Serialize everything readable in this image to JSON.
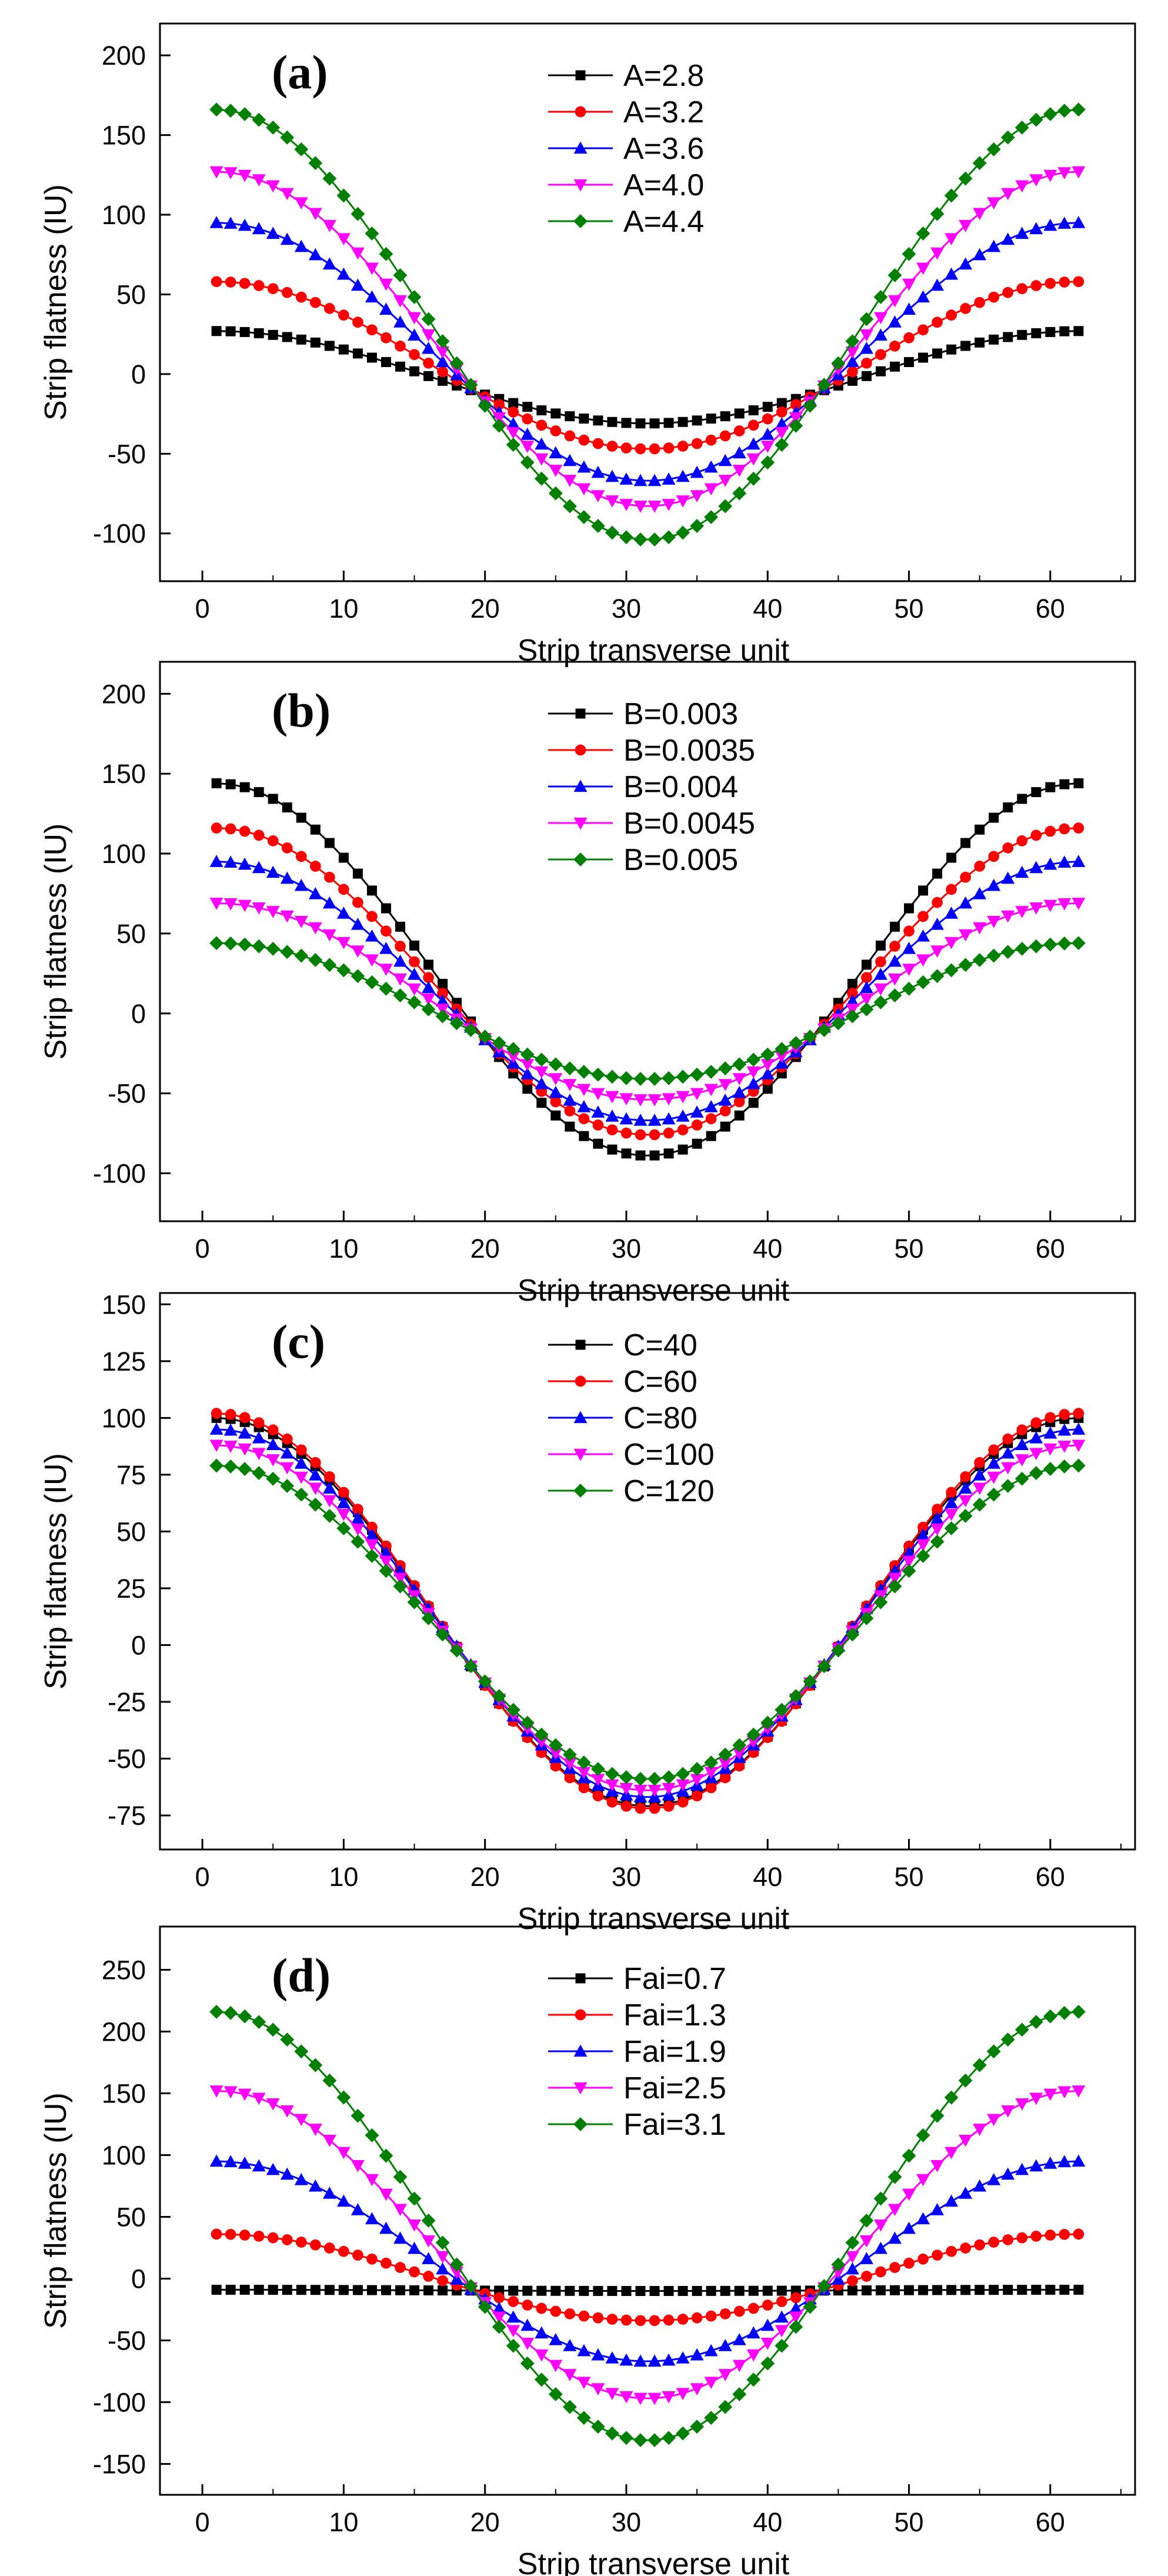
{
  "figure": {
    "colors": {
      "black": "#000000",
      "red": "#ff0000",
      "blue": "#0000ff",
      "magenta": "#ff00ff",
      "green": "#008000"
    }
  },
  "chart_data": [
    {
      "type": "line",
      "panel": "(a)",
      "xlabel": "Strip transverse unit",
      "ylabel": "Strip flatness (IU)",
      "xlim": [
        -3,
        66
      ],
      "ylim": [
        -130,
        220
      ],
      "xticks": [
        0,
        10,
        20,
        30,
        40,
        50,
        60
      ],
      "yticks": [
        -100,
        -50,
        0,
        50,
        100,
        150,
        200
      ],
      "x_range": [
        1,
        62
      ],
      "legend_position": "top-center",
      "series": [
        {
          "name": "A=2.8",
          "color": "#000000",
          "marker": "square",
          "edge": 27,
          "min": -31
        },
        {
          "name": "A=3.2",
          "color": "#ff0000",
          "marker": "circle",
          "edge": 58,
          "min": -47
        },
        {
          "name": "A=3.6",
          "color": "#0000ff",
          "marker": "triangle-up",
          "edge": 95,
          "min": -67
        },
        {
          "name": "A=4.0",
          "color": "#ff00ff",
          "marker": "triangle-down",
          "edge": 127,
          "min": -83
        },
        {
          "name": "A=4.4",
          "color": "#008000",
          "marker": "diamond",
          "edge": 166,
          "min": -104
        }
      ]
    },
    {
      "type": "line",
      "panel": "(b)",
      "xlabel": "Strip transverse unit",
      "ylabel": "Strip flatness (IU)",
      "xlim": [
        -3,
        66
      ],
      "ylim": [
        -130,
        220
      ],
      "xticks": [
        0,
        10,
        20,
        30,
        40,
        50,
        60
      ],
      "yticks": [
        -100,
        -50,
        0,
        50,
        100,
        150,
        200
      ],
      "x_range": [
        1,
        62
      ],
      "legend_position": "top-center",
      "series": [
        {
          "name": "B=0.003",
          "color": "#000000",
          "marker": "square",
          "edge": 144,
          "min": -89
        },
        {
          "name": "B=0.0035",
          "color": "#ff0000",
          "marker": "circle",
          "edge": 116,
          "min": -76
        },
        {
          "name": "B=0.004",
          "color": "#0000ff",
          "marker": "triangle-up",
          "edge": 95,
          "min": -67
        },
        {
          "name": "B=0.0045",
          "color": "#ff00ff",
          "marker": "triangle-down",
          "edge": 69,
          "min": -54
        },
        {
          "name": "B=0.005",
          "color": "#008000",
          "marker": "diamond",
          "edge": 44,
          "min": -41
        }
      ]
    },
    {
      "type": "line",
      "panel": "(c)",
      "xlabel": "Strip transverse unit",
      "ylabel": "Strip flatness (IU)",
      "xlim": [
        -3,
        66
      ],
      "ylim": [
        -90,
        155
      ],
      "xticks": [
        0,
        10,
        20,
        30,
        40,
        50,
        60
      ],
      "yticks": [
        -75,
        -50,
        -25,
        0,
        25,
        50,
        75,
        100,
        125,
        150
      ],
      "x_range": [
        1,
        62
      ],
      "legend_position": "top-center",
      "series": [
        {
          "name": "C=40",
          "color": "#000000",
          "marker": "square",
          "edge": 100,
          "min": -71
        },
        {
          "name": "C=60",
          "color": "#ff0000",
          "marker": "circle",
          "edge": 102,
          "min": -72
        },
        {
          "name": "C=80",
          "color": "#0000ff",
          "marker": "triangle-up",
          "edge": 95,
          "min": -67
        },
        {
          "name": "C=100",
          "color": "#ff00ff",
          "marker": "triangle-down",
          "edge": 88,
          "min": -64
        },
        {
          "name": "C=120",
          "color": "#008000",
          "marker": "diamond",
          "edge": 79,
          "min": -59
        }
      ]
    },
    {
      "type": "line",
      "panel": "(d)",
      "xlabel": "Strip transverse unit",
      "ylabel": "Strip flatness (IU)",
      "xlim": [
        -3,
        66
      ],
      "ylim": [
        -175,
        285
      ],
      "xticks": [
        0,
        10,
        20,
        30,
        40,
        50,
        60
      ],
      "yticks": [
        -150,
        -100,
        -50,
        0,
        50,
        100,
        150,
        200,
        250
      ],
      "x_range": [
        1,
        62
      ],
      "legend_position": "top-center",
      "series": [
        {
          "name": "Fai=0.7",
          "color": "#000000",
          "marker": "square",
          "edge": -9,
          "min": -10
        },
        {
          "name": "Fai=1.3",
          "color": "#ff0000",
          "marker": "circle",
          "edge": 36,
          "min": -34
        },
        {
          "name": "Fai=1.9",
          "color": "#0000ff",
          "marker": "triangle-up",
          "edge": 95,
          "min": -67
        },
        {
          "name": "Fai=2.5",
          "color": "#ff00ff",
          "marker": "triangle-down",
          "edge": 152,
          "min": -97
        },
        {
          "name": "Fai=3.1",
          "color": "#008000",
          "marker": "diamond",
          "edge": 216,
          "min": -131
        }
      ]
    }
  ]
}
